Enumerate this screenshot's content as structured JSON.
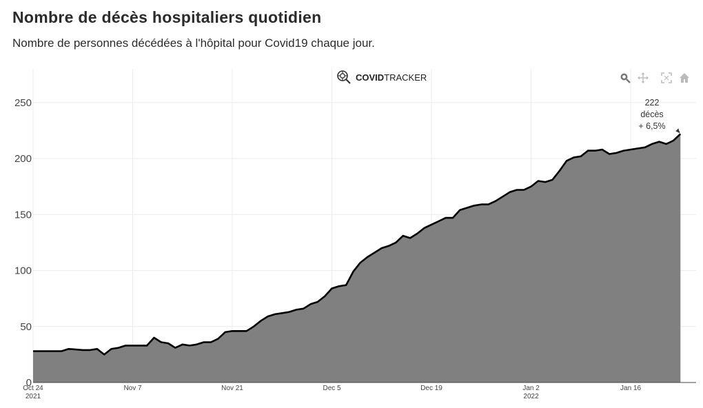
{
  "header": {
    "title": "Nombre de décès hospitaliers quotidien",
    "subtitle": "Nombre de personnes décédées à l'hôpital pour Covid19 chaque jour."
  },
  "brand": {
    "bold": "COVID",
    "light": "TRACKER",
    "icon": "covidtracker-logo-icon"
  },
  "modebar": {
    "icons": [
      "zoom-icon",
      "pan-icon",
      "autoscale-icon",
      "home-icon"
    ]
  },
  "colors": {
    "area": "#808080",
    "line": "#000000",
    "grid": "#ececec"
  },
  "chart_data": {
    "type": "area",
    "title": "Nombre de décès hospitaliers quotidien",
    "subtitle": "Nombre de personnes décédées à l'hôpital pour Covid19 chaque jour.",
    "x_start": "2021-10-24",
    "x_end": "2022-01-22",
    "x_ticks": [
      {
        "date": "2021-10-24",
        "label": "Oct 24",
        "sub": "2021"
      },
      {
        "date": "2021-11-07",
        "label": "Nov 7",
        "sub": ""
      },
      {
        "date": "2021-11-21",
        "label": "Nov 21",
        "sub": ""
      },
      {
        "date": "2021-12-05",
        "label": "Dec 5",
        "sub": ""
      },
      {
        "date": "2021-12-19",
        "label": "Dec 19",
        "sub": ""
      },
      {
        "date": "2022-01-02",
        "label": "Jan 2",
        "sub": "2022"
      },
      {
        "date": "2022-01-16",
        "label": "Jan 16",
        "sub": ""
      }
    ],
    "y_ticks": [
      0,
      50,
      100,
      150,
      200,
      250
    ],
    "ylim": [
      0,
      280
    ],
    "grid": true,
    "series": [
      {
        "values": [
          28,
          28,
          28,
          28,
          28,
          30,
          29.5,
          29,
          29,
          30,
          25,
          30,
          31,
          33,
          33,
          33,
          33,
          40,
          36,
          35,
          31,
          34,
          33,
          34,
          36,
          36,
          39,
          45,
          46,
          46,
          46,
          50,
          55,
          59,
          61,
          62,
          63,
          65,
          66,
          70,
          72,
          77,
          84,
          86,
          87,
          99,
          107,
          112,
          116,
          120,
          122,
          125,
          131,
          129,
          133,
          138,
          141,
          144,
          147,
          147,
          154,
          156,
          158,
          159,
          159,
          162,
          166,
          170,
          172,
          172,
          175,
          180,
          179,
          181,
          189,
          198,
          201,
          202,
          207,
          207,
          208,
          204,
          205,
          207,
          208,
          209,
          210,
          213,
          215,
          213,
          216,
          222
        ]
      }
    ],
    "annotation": {
      "value": "222",
      "unit": "décès",
      "change": "+ 6,5%"
    }
  }
}
